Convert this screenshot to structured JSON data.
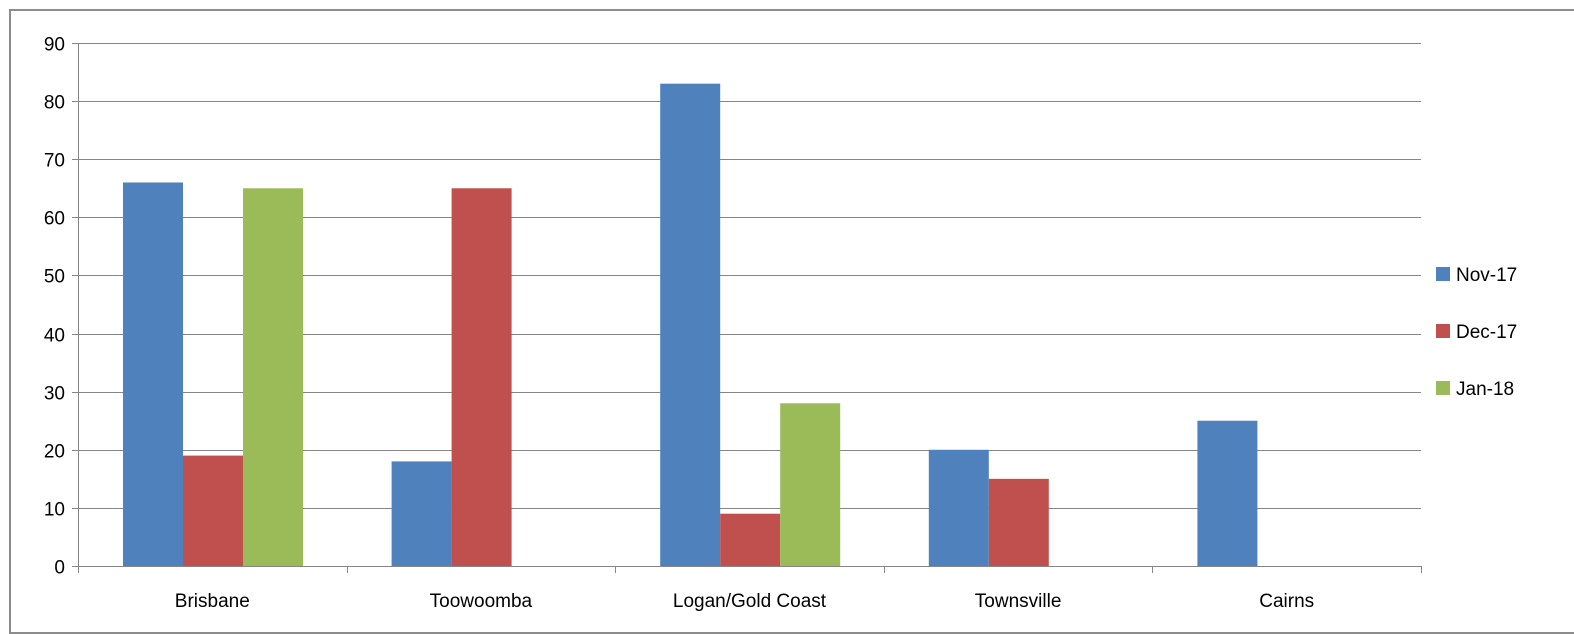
{
  "chart_data": {
    "type": "bar",
    "title": "",
    "xlabel": "",
    "ylabel": "",
    "categories": [
      "Brisbane",
      "Toowoomba",
      "Logan/Gold Coast",
      "Townsville",
      "Cairns"
    ],
    "series": [
      {
        "name": "Nov-17",
        "color": "#4f81bd",
        "values": [
          66,
          18,
          83,
          20,
          25
        ]
      },
      {
        "name": "Dec-17",
        "color": "#c0504d",
        "values": [
          19,
          65,
          9,
          15,
          0
        ]
      },
      {
        "name": "Jan-18",
        "color": "#9bbb59",
        "values": [
          65,
          0,
          28,
          0,
          0
        ]
      }
    ],
    "ylim": [
      0,
      90
    ],
    "yticks": [
      0,
      10,
      20,
      30,
      40,
      50,
      60,
      70,
      80,
      90
    ],
    "grid": true,
    "legend_position": "right"
  }
}
